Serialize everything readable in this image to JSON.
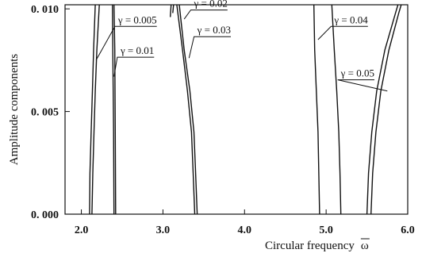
{
  "chart_data": {
    "type": "line",
    "title": "",
    "xlabel": "Circular frequency",
    "xlabel_symbol": "ω",
    "ylabel": "Amplitude components",
    "xlim": [
      1.8,
      6.0
    ],
    "ylim": [
      0.0,
      0.0102
    ],
    "x_ticks": [
      2.0,
      3.0,
      4.0,
      5.0,
      6.0
    ],
    "x_tick_labels": [
      "2.0",
      "3.0",
      "4.0",
      "5.0",
      "6.0"
    ],
    "y_ticks": [
      0.0,
      0.005,
      0.01
    ],
    "y_tick_labels": [
      "0. 000",
      "0. 005",
      "0. 010"
    ],
    "grid": false,
    "series": [
      {
        "name": "γ = 0.005",
        "points": [
          [
            2.13,
            0.0
          ],
          [
            2.14,
            0.002
          ],
          [
            2.155,
            0.004
          ],
          [
            2.17,
            0.006
          ],
          [
            2.19,
            0.008
          ],
          [
            2.22,
            0.0102
          ]
        ]
      },
      {
        "name": "γ = 0.005",
        "points": [
          [
            2.4,
            0.0
          ],
          [
            2.395,
            0.004
          ],
          [
            2.385,
            0.008
          ],
          [
            2.38,
            0.0102
          ]
        ]
      },
      {
        "name": "γ = 0.01",
        "points": [
          [
            2.1,
            0.0
          ],
          [
            2.105,
            0.002
          ],
          [
            2.12,
            0.004
          ],
          [
            2.135,
            0.006
          ],
          [
            2.15,
            0.008
          ],
          [
            2.17,
            0.0102
          ]
        ]
      },
      {
        "name": "γ = 0.01",
        "points": [
          [
            2.42,
            0.0
          ],
          [
            2.415,
            0.004
          ],
          [
            2.41,
            0.008
          ],
          [
            2.4,
            0.0102
          ]
        ]
      },
      {
        "name": "γ = 0.02",
        "points": [
          [
            3.39,
            0.0
          ],
          [
            3.37,
            0.002
          ],
          [
            3.35,
            0.004
          ],
          [
            3.3,
            0.006
          ],
          [
            3.24,
            0.008
          ],
          [
            3.17,
            0.0102
          ]
        ]
      },
      {
        "name": "γ = 0.02",
        "points": [
          [
            3.1,
            0.0102
          ],
          [
            3.09,
            0.0096
          ]
        ]
      },
      {
        "name": "γ = 0.03",
        "points": [
          [
            3.42,
            0.0
          ],
          [
            3.4,
            0.002
          ],
          [
            3.38,
            0.004
          ],
          [
            3.33,
            0.006
          ],
          [
            3.26,
            0.008
          ],
          [
            3.2,
            0.0102
          ]
        ]
      },
      {
        "name": "γ = 0.03",
        "points": [
          [
            3.13,
            0.0102
          ],
          [
            3.12,
            0.0098
          ]
        ]
      },
      {
        "name": "γ = 0.04",
        "points": [
          [
            4.92,
            0.0
          ],
          [
            4.91,
            0.002
          ],
          [
            4.9,
            0.004
          ],
          [
            4.88,
            0.006
          ],
          [
            4.86,
            0.008
          ],
          [
            4.85,
            0.0102
          ]
        ]
      },
      {
        "name": "γ = 0.04",
        "points": [
          [
            5.18,
            0.0
          ],
          [
            5.17,
            0.002
          ],
          [
            5.155,
            0.004
          ],
          [
            5.13,
            0.006
          ],
          [
            5.1,
            0.008
          ],
          [
            5.07,
            0.0102
          ]
        ]
      },
      {
        "name": "γ = 0.05",
        "points": [
          [
            5.5,
            0.0
          ],
          [
            5.52,
            0.002
          ],
          [
            5.56,
            0.004
          ],
          [
            5.62,
            0.006
          ],
          [
            5.72,
            0.008
          ],
          [
            5.85,
            0.0098
          ],
          [
            5.88,
            0.0102
          ]
        ]
      },
      {
        "name": "γ = 0.05",
        "points": [
          [
            5.55,
            0.0
          ],
          [
            5.57,
            0.002
          ],
          [
            5.61,
            0.004
          ],
          [
            5.67,
            0.006
          ],
          [
            5.77,
            0.008
          ],
          [
            5.89,
            0.0098
          ],
          [
            5.92,
            0.0102
          ]
        ]
      }
    ],
    "annotations": [
      {
        "text": "γ = 0.005",
        "target": [
          2.18,
          0.0075
        ],
        "label_at": [
          2.45,
          0.0093
        ]
      },
      {
        "text": "γ = 0.01",
        "target": [
          2.4,
          0.0067
        ],
        "label_at": [
          2.48,
          0.0078
        ]
      },
      {
        "text": "γ = 0.02",
        "target": [
          3.26,
          0.0095
        ],
        "label_at": [
          3.38,
          0.0101
        ]
      },
      {
        "text": "γ = 0.03",
        "target": [
          3.32,
          0.0076
        ],
        "label_at": [
          3.42,
          0.0088
        ]
      },
      {
        "text": "γ = 0.04",
        "target": [
          4.9,
          0.0085
        ],
        "label_at": [
          5.1,
          0.0093
        ]
      },
      {
        "text": "γ = 0.05",
        "target": [
          5.75,
          0.006
        ],
        "label_at": [
          5.18,
          0.0067
        ]
      }
    ]
  }
}
